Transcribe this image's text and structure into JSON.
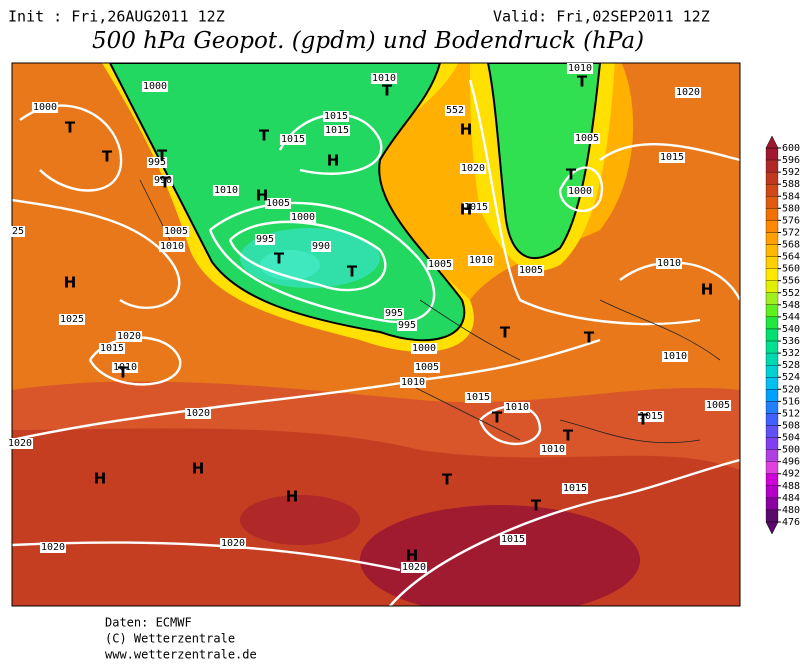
{
  "header": {
    "init": "Init : Fri,26AUG2011 12Z",
    "valid": "Valid: Fri,02SEP2011 12Z",
    "title": "500 hPa Geopot. (gpdm) und Bodendruck (hPa)"
  },
  "colorbar": {
    "ticks": [
      600,
      596,
      592,
      588,
      584,
      580,
      576,
      572,
      568,
      564,
      560,
      556,
      552,
      548,
      544,
      540,
      536,
      532,
      528,
      524,
      520,
      516,
      512,
      508,
      504,
      500,
      496,
      492,
      488,
      484,
      480,
      476
    ],
    "colors": [
      "#a01830",
      "#b02828",
      "#c03820",
      "#d04818",
      "#e05a10",
      "#f07000",
      "#ff8800",
      "#ffa000",
      "#ffb800",
      "#ffd000",
      "#ffe800",
      "#e0f000",
      "#a0f020",
      "#60f020",
      "#20e840",
      "#00e070",
      "#00e090",
      "#00d8b0",
      "#00d0d0",
      "#00c0f0",
      "#00a0ff",
      "#2080ff",
      "#4060ff",
      "#6050f8",
      "#8040f0",
      "#b040e0",
      "#e040e0",
      "#d000d8",
      "#b400c8",
      "#8a00a0",
      "#5a0a6a"
    ]
  },
  "map": {
    "isobar_labels": [
      1000,
      1000,
      995,
      990,
      1010,
      1005,
      1000,
      995,
      990,
      1015,
      1015,
      1015,
      1010,
      552,
      1020,
      1015,
      1005,
      1000,
      1010,
      1020,
      1015,
      1010,
      1005,
      1010,
      1005,
      1005,
      1010,
      1025,
      1020,
      1015,
      1010,
      1000,
      1005,
      1010,
      995,
      995,
      1015,
      1010,
      1010,
      1015,
      1005,
      1010,
      1020,
      1020,
      1020,
      1020,
      1020,
      1015,
      1015,
      25
    ],
    "pressure_centers": [
      "T",
      "T",
      "T",
      "T",
      "T",
      "T",
      "T",
      "T",
      "H",
      "H",
      "H",
      "H",
      "T",
      "T",
      "H",
      "T",
      "T",
      "T",
      "T",
      "T",
      "T",
      "H",
      "H",
      "H",
      "H",
      "T",
      "T",
      "H"
    ]
  },
  "footer": {
    "lines": [
      "Daten: ECMWF",
      "(C) Wetterzentrale",
      "www.wetterzentrale.de"
    ]
  }
}
